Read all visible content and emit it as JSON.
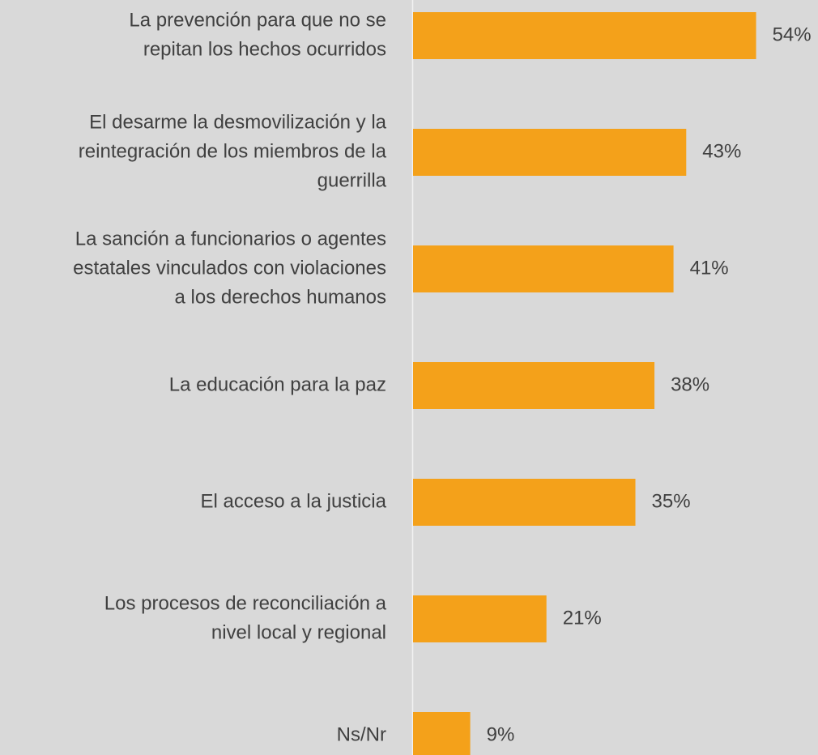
{
  "chart_data": {
    "type": "bar",
    "orientation": "horizontal",
    "categories": [
      [
        "La prevención para que no se",
        "repitan los hechos ocurridos"
      ],
      [
        "El desarme la desmovilización y la",
        "reintegración de los miembros de la",
        "guerrilla"
      ],
      [
        "La sanción a funcionarios o agentes",
        "estatales vinculados con violaciones",
        "a los derechos humanos"
      ],
      [
        "La educación para la paz"
      ],
      [
        "El acceso a la justicia"
      ],
      [
        "Los procesos de reconciliación a",
        "nivel local y regional"
      ],
      [
        "Ns/Nr"
      ]
    ],
    "values": [
      54,
      43,
      41,
      38,
      35,
      21,
      9
    ],
    "value_labels": [
      "54%",
      "43%",
      "41%",
      "38%",
      "35%",
      "21%",
      "9%"
    ],
    "color": "#f4a11a",
    "xlim": [
      0,
      64
    ]
  }
}
